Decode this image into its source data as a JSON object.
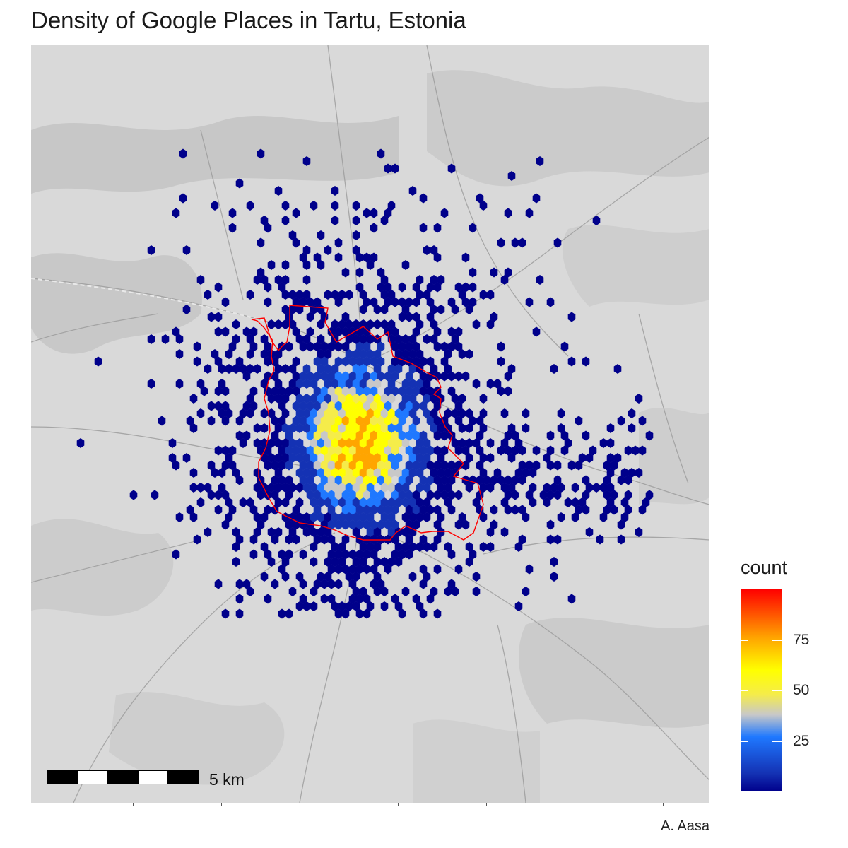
{
  "title": "Density of Google Places in Tartu, Estonia",
  "legend": {
    "title": "count",
    "ticks": [
      {
        "label": "25",
        "value": 25
      },
      {
        "label": "50",
        "value": 50
      },
      {
        "label": "75",
        "value": 75
      }
    ],
    "max": 100,
    "colors": [
      "#00008b",
      "#1432b4",
      "#1f78ff",
      "#c8c8c8",
      "#f5ec4a",
      "#ffff00",
      "#ffa500",
      "#ff0000"
    ]
  },
  "scale_bar": {
    "label": "5 km"
  },
  "credit": "A. Aasa",
  "boundary_color": "#ff0000",
  "basemap_color": "#d9d9d9"
}
